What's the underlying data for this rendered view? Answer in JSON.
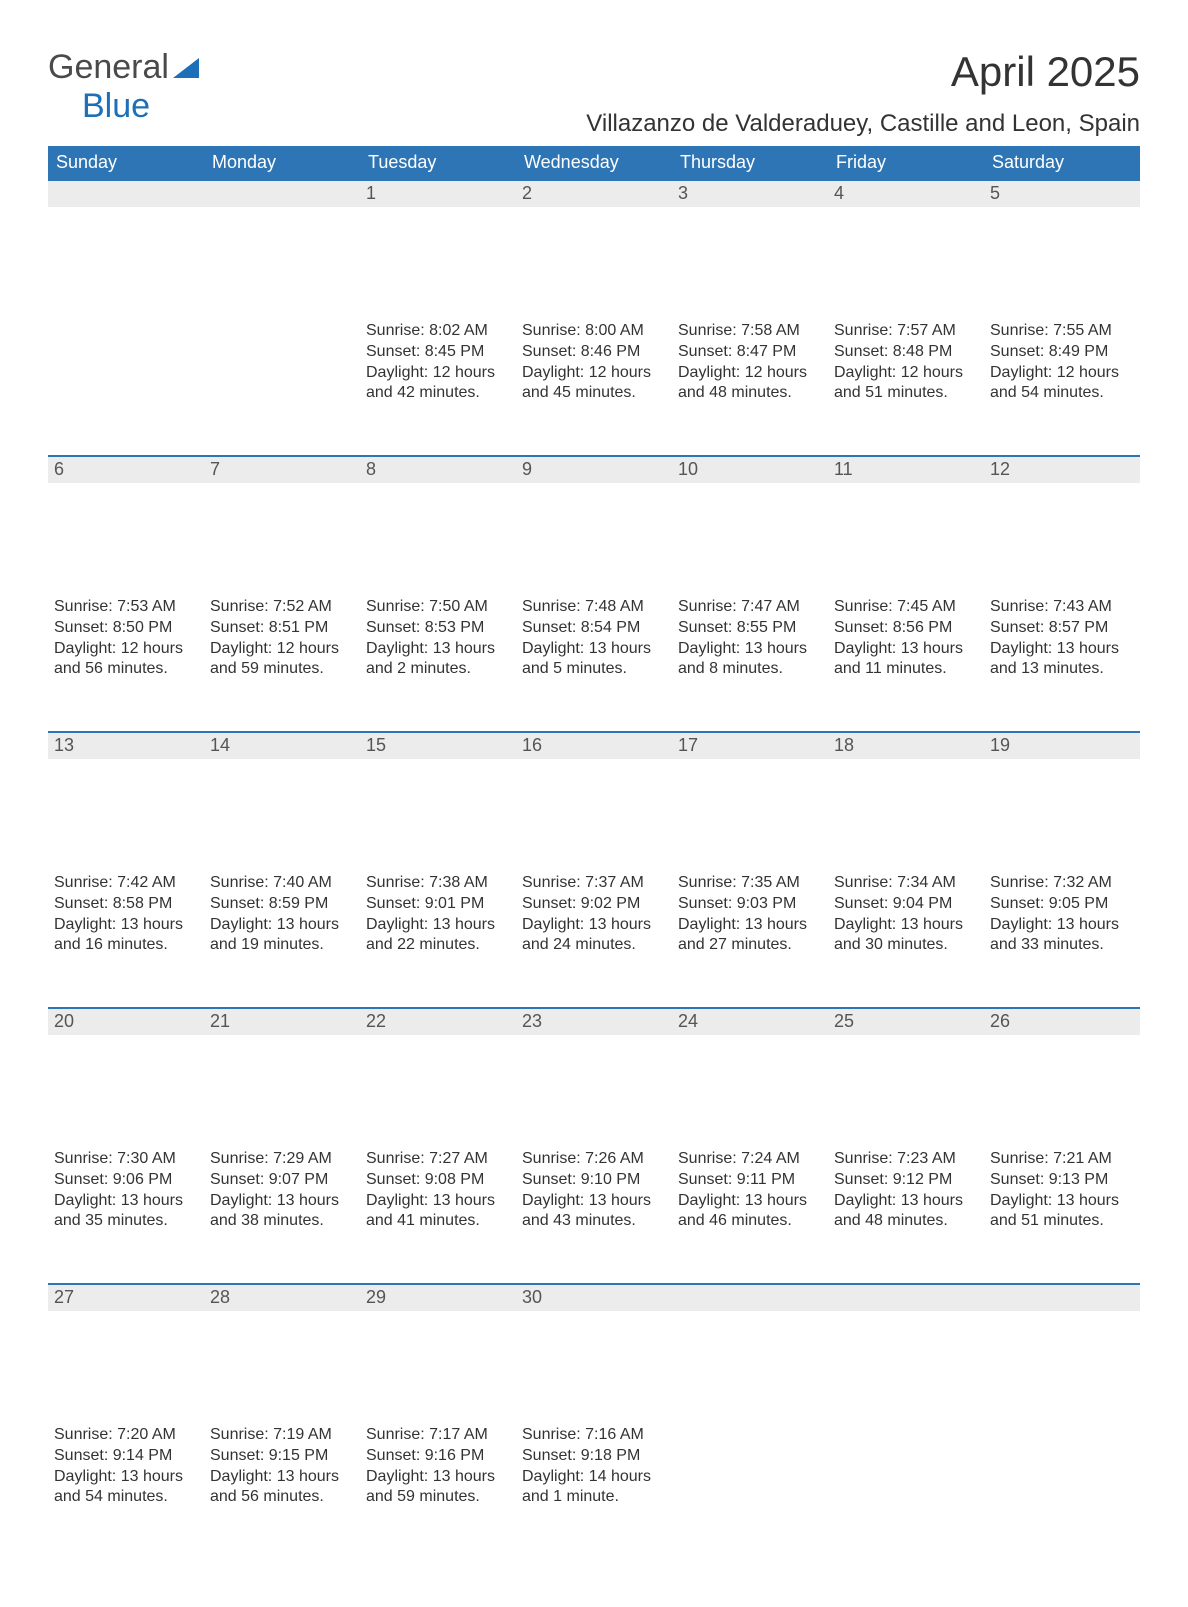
{
  "logo": {
    "general": "General",
    "blue": "Blue"
  },
  "title": "April 2025",
  "location": "Villazanzo de Valderaduey, Castille and Leon, Spain",
  "colors": {
    "header_bg": "#2e75b6",
    "header_fg": "#ffffff",
    "daynum_bg": "#ececec",
    "rule": "#2e75b6",
    "text": "#333333",
    "logo_blue": "#1d6fb8",
    "logo_grey": "#4a4a4a"
  },
  "day_headers": [
    "Sunday",
    "Monday",
    "Tuesday",
    "Wednesday",
    "Thursday",
    "Friday",
    "Saturday"
  ],
  "weeks": [
    [
      {
        "n": "",
        "lines": []
      },
      {
        "n": "",
        "lines": []
      },
      {
        "n": "1",
        "lines": [
          "Sunrise: 8:02 AM",
          "Sunset: 8:45 PM",
          "Daylight: 12 hours and 42 minutes."
        ]
      },
      {
        "n": "2",
        "lines": [
          "Sunrise: 8:00 AM",
          "Sunset: 8:46 PM",
          "Daylight: 12 hours and 45 minutes."
        ]
      },
      {
        "n": "3",
        "lines": [
          "Sunrise: 7:58 AM",
          "Sunset: 8:47 PM",
          "Daylight: 12 hours and 48 minutes."
        ]
      },
      {
        "n": "4",
        "lines": [
          "Sunrise: 7:57 AM",
          "Sunset: 8:48 PM",
          "Daylight: 12 hours and 51 minutes."
        ]
      },
      {
        "n": "5",
        "lines": [
          "Sunrise: 7:55 AM",
          "Sunset: 8:49 PM",
          "Daylight: 12 hours and 54 minutes."
        ]
      }
    ],
    [
      {
        "n": "6",
        "lines": [
          "Sunrise: 7:53 AM",
          "Sunset: 8:50 PM",
          "Daylight: 12 hours and 56 minutes."
        ]
      },
      {
        "n": "7",
        "lines": [
          "Sunrise: 7:52 AM",
          "Sunset: 8:51 PM",
          "Daylight: 12 hours and 59 minutes."
        ]
      },
      {
        "n": "8",
        "lines": [
          "Sunrise: 7:50 AM",
          "Sunset: 8:53 PM",
          "Daylight: 13 hours and 2 minutes."
        ]
      },
      {
        "n": "9",
        "lines": [
          "Sunrise: 7:48 AM",
          "Sunset: 8:54 PM",
          "Daylight: 13 hours and 5 minutes."
        ]
      },
      {
        "n": "10",
        "lines": [
          "Sunrise: 7:47 AM",
          "Sunset: 8:55 PM",
          "Daylight: 13 hours and 8 minutes."
        ]
      },
      {
        "n": "11",
        "lines": [
          "Sunrise: 7:45 AM",
          "Sunset: 8:56 PM",
          "Daylight: 13 hours and 11 minutes."
        ]
      },
      {
        "n": "12",
        "lines": [
          "Sunrise: 7:43 AM",
          "Sunset: 8:57 PM",
          "Daylight: 13 hours and 13 minutes."
        ]
      }
    ],
    [
      {
        "n": "13",
        "lines": [
          "Sunrise: 7:42 AM",
          "Sunset: 8:58 PM",
          "Daylight: 13 hours and 16 minutes."
        ]
      },
      {
        "n": "14",
        "lines": [
          "Sunrise: 7:40 AM",
          "Sunset: 8:59 PM",
          "Daylight: 13 hours and 19 minutes."
        ]
      },
      {
        "n": "15",
        "lines": [
          "Sunrise: 7:38 AM",
          "Sunset: 9:01 PM",
          "Daylight: 13 hours and 22 minutes."
        ]
      },
      {
        "n": "16",
        "lines": [
          "Sunrise: 7:37 AM",
          "Sunset: 9:02 PM",
          "Daylight: 13 hours and 24 minutes."
        ]
      },
      {
        "n": "17",
        "lines": [
          "Sunrise: 7:35 AM",
          "Sunset: 9:03 PM",
          "Daylight: 13 hours and 27 minutes."
        ]
      },
      {
        "n": "18",
        "lines": [
          "Sunrise: 7:34 AM",
          "Sunset: 9:04 PM",
          "Daylight: 13 hours and 30 minutes."
        ]
      },
      {
        "n": "19",
        "lines": [
          "Sunrise: 7:32 AM",
          "Sunset: 9:05 PM",
          "Daylight: 13 hours and 33 minutes."
        ]
      }
    ],
    [
      {
        "n": "20",
        "lines": [
          "Sunrise: 7:30 AM",
          "Sunset: 9:06 PM",
          "Daylight: 13 hours and 35 minutes."
        ]
      },
      {
        "n": "21",
        "lines": [
          "Sunrise: 7:29 AM",
          "Sunset: 9:07 PM",
          "Daylight: 13 hours and 38 minutes."
        ]
      },
      {
        "n": "22",
        "lines": [
          "Sunrise: 7:27 AM",
          "Sunset: 9:08 PM",
          "Daylight: 13 hours and 41 minutes."
        ]
      },
      {
        "n": "23",
        "lines": [
          "Sunrise: 7:26 AM",
          "Sunset: 9:10 PM",
          "Daylight: 13 hours and 43 minutes."
        ]
      },
      {
        "n": "24",
        "lines": [
          "Sunrise: 7:24 AM",
          "Sunset: 9:11 PM",
          "Daylight: 13 hours and 46 minutes."
        ]
      },
      {
        "n": "25",
        "lines": [
          "Sunrise: 7:23 AM",
          "Sunset: 9:12 PM",
          "Daylight: 13 hours and 48 minutes."
        ]
      },
      {
        "n": "26",
        "lines": [
          "Sunrise: 7:21 AM",
          "Sunset: 9:13 PM",
          "Daylight: 13 hours and 51 minutes."
        ]
      }
    ],
    [
      {
        "n": "27",
        "lines": [
          "Sunrise: 7:20 AM",
          "Sunset: 9:14 PM",
          "Daylight: 13 hours and 54 minutes."
        ]
      },
      {
        "n": "28",
        "lines": [
          "Sunrise: 7:19 AM",
          "Sunset: 9:15 PM",
          "Daylight: 13 hours and 56 minutes."
        ]
      },
      {
        "n": "29",
        "lines": [
          "Sunrise: 7:17 AM",
          "Sunset: 9:16 PM",
          "Daylight: 13 hours and 59 minutes."
        ]
      },
      {
        "n": "30",
        "lines": [
          "Sunrise: 7:16 AM",
          "Sunset: 9:18 PM",
          "Daylight: 14 hours and 1 minute."
        ]
      },
      {
        "n": "",
        "lines": []
      },
      {
        "n": "",
        "lines": []
      },
      {
        "n": "",
        "lines": []
      }
    ]
  ]
}
